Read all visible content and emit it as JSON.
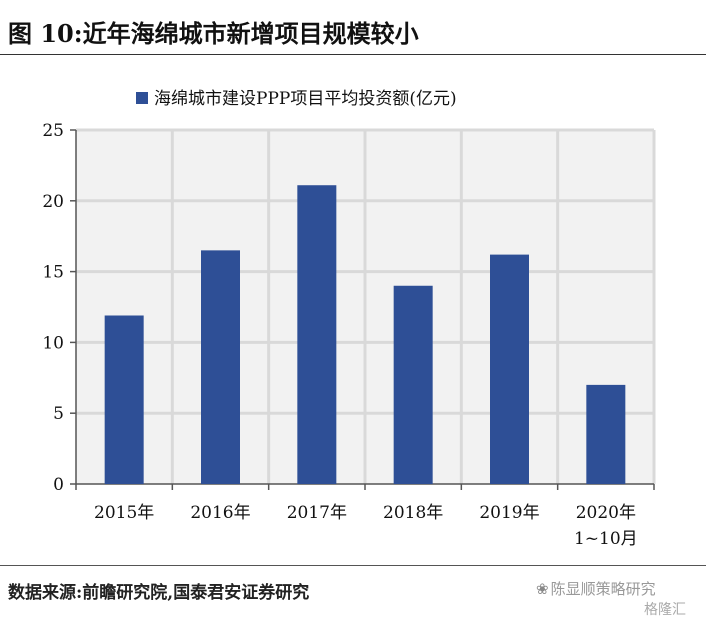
{
  "figure_title": "图 10:近年海绵城市新增项目规模较小",
  "source_note": "数据来源:前瞻研究院,国泰君安证券研究",
  "watermark": "陈显顺策略研究",
  "watermark_sub": "格隆汇",
  "chart_data": {
    "type": "bar",
    "categories": [
      "2015年",
      "2016年",
      "2017年",
      "2018年",
      "2019年",
      "2020年 1~10月"
    ],
    "category_lines": [
      [
        "2015年"
      ],
      [
        "2016年"
      ],
      [
        "2017年"
      ],
      [
        "2018年"
      ],
      [
        "2019年"
      ],
      [
        "2020年",
        "1~10月"
      ]
    ],
    "series": [
      {
        "name": "海绵城市建设PPP项目平均投资额(亿元)",
        "values": [
          11.9,
          16.5,
          21.1,
          14.0,
          16.2,
          7.0
        ]
      }
    ],
    "ylim": [
      0,
      25
    ],
    "yticks": [
      0,
      5,
      10,
      15,
      20,
      25
    ],
    "grid": true,
    "legend_position": "top",
    "colors": {
      "bar": "#2E4F96",
      "grid": "#D9D9D9",
      "plot_bg": "#F2F2F2"
    }
  }
}
